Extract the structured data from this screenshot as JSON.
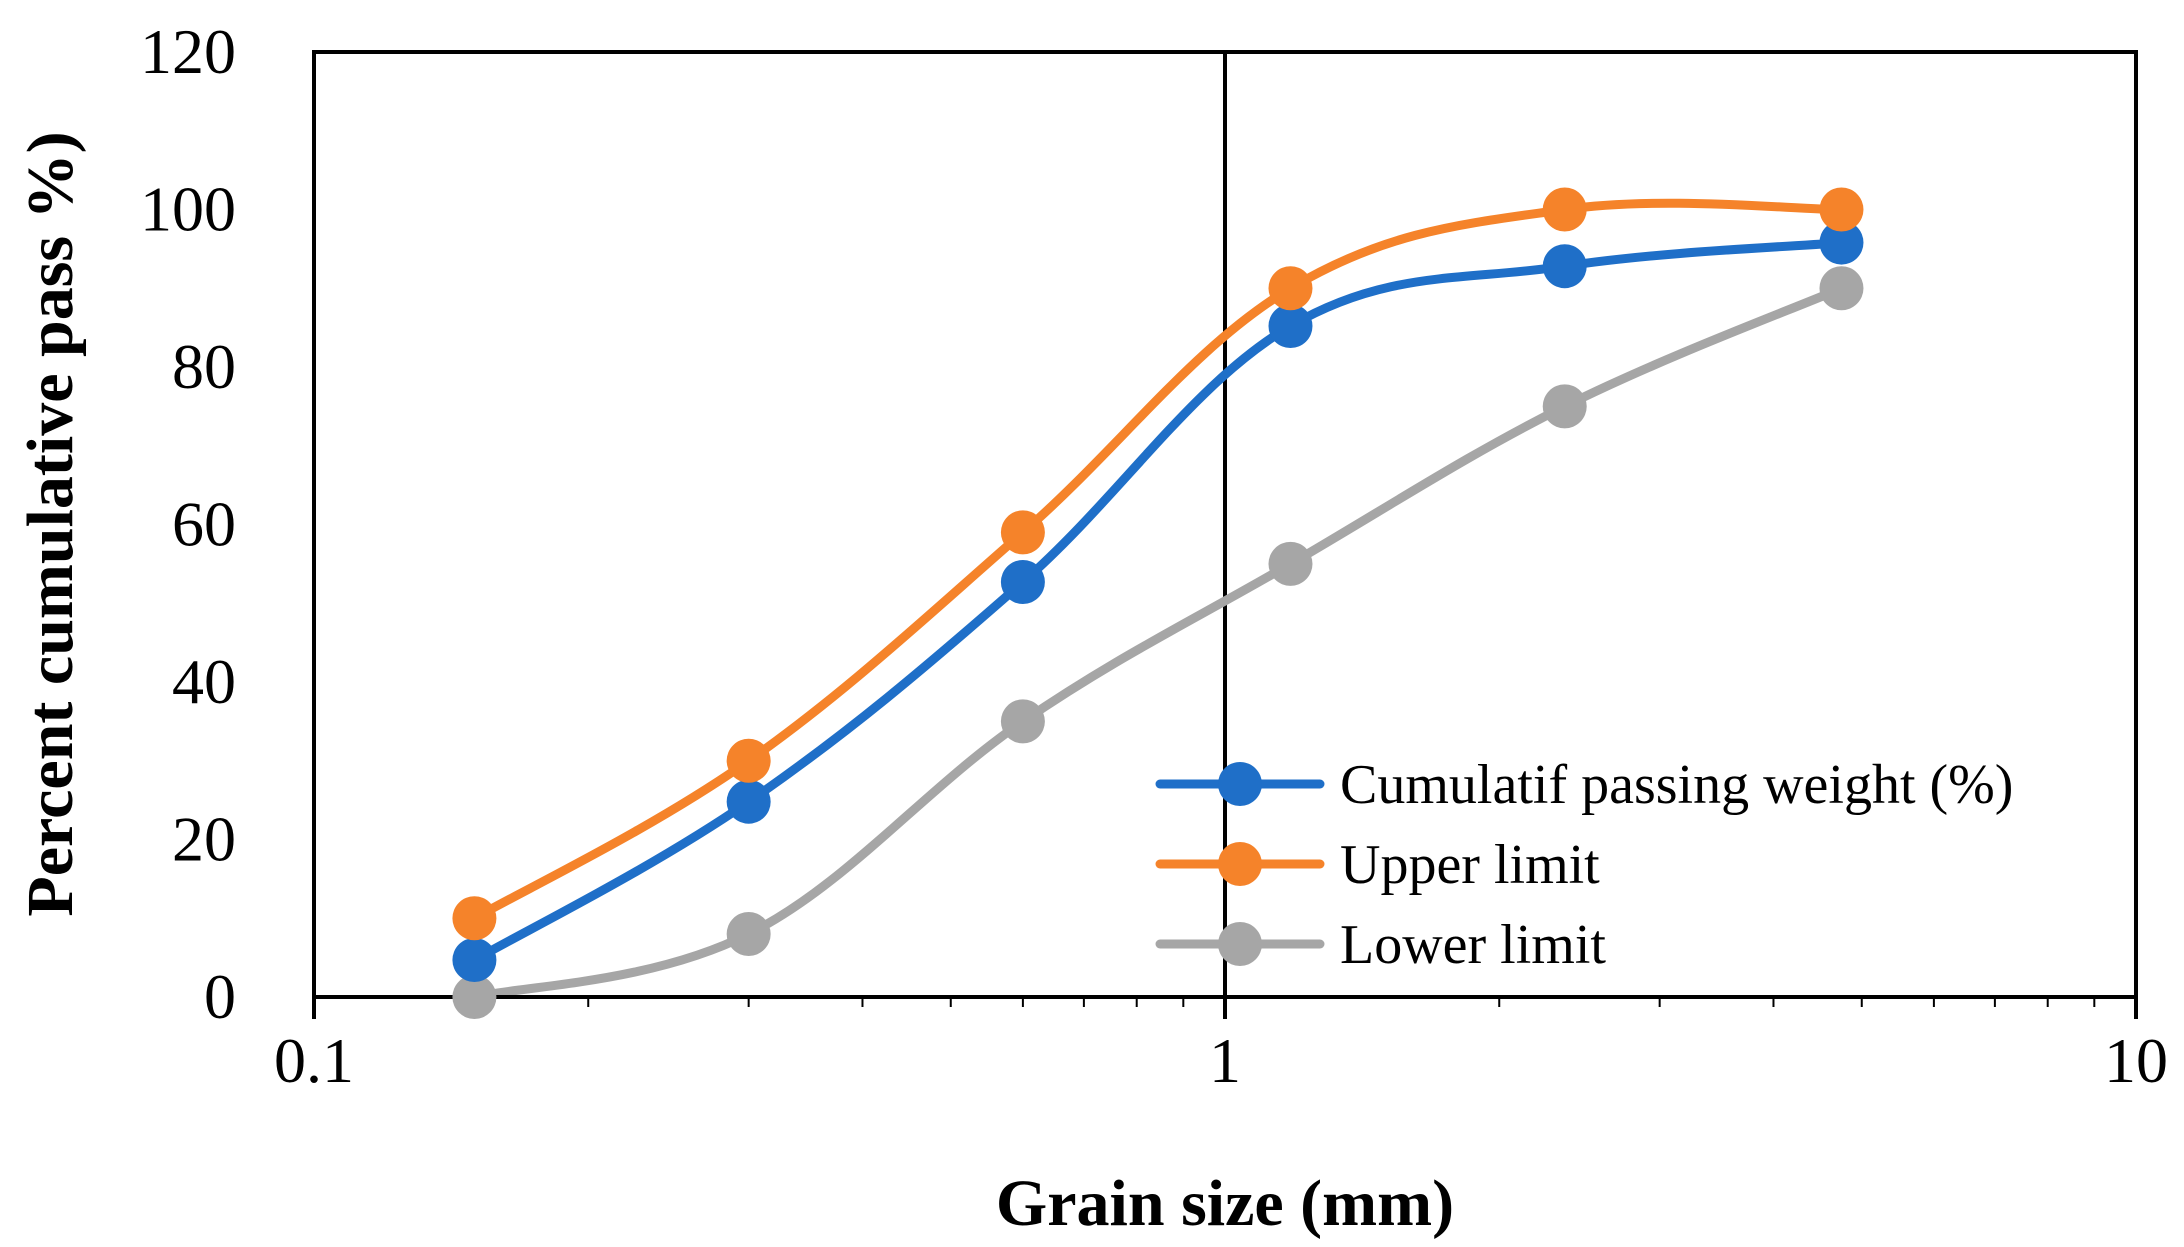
{
  "chart_data": {
    "type": "line",
    "xscale": "log",
    "xlim": [
      0.1,
      10
    ],
    "ylim": [
      0,
      120
    ],
    "xticks": [
      0.1,
      1,
      10
    ],
    "xtick_labels": [
      "0.1",
      "1",
      "10"
    ],
    "yticks": [
      0,
      20,
      40,
      60,
      80,
      100,
      120
    ],
    "ytick_labels": [
      "0",
      "20",
      "40",
      "60",
      "80",
      "100",
      "120"
    ],
    "xlabel": "Grain size (mm)",
    "ylabel": "Percent cumulative pass %)",
    "grid": false,
    "legend_position": "bottom-right",
    "x": [
      0.15,
      0.3,
      0.6,
      1.18,
      2.36,
      4.75
    ],
    "series": [
      {
        "name": "Cumulatif passing weight (%)",
        "color": "#1F6FC8",
        "values": [
          4.7,
          24.8,
          52.7,
          85.2,
          92.8,
          95.8
        ]
      },
      {
        "name": "Upper limit",
        "color": "#F5832A",
        "values": [
          10,
          30,
          59,
          90,
          100,
          100
        ]
      },
      {
        "name": "Lower limit",
        "color": "#A6A6A6",
        "values": [
          0,
          8,
          35,
          55,
          75,
          90
        ]
      }
    ]
  }
}
